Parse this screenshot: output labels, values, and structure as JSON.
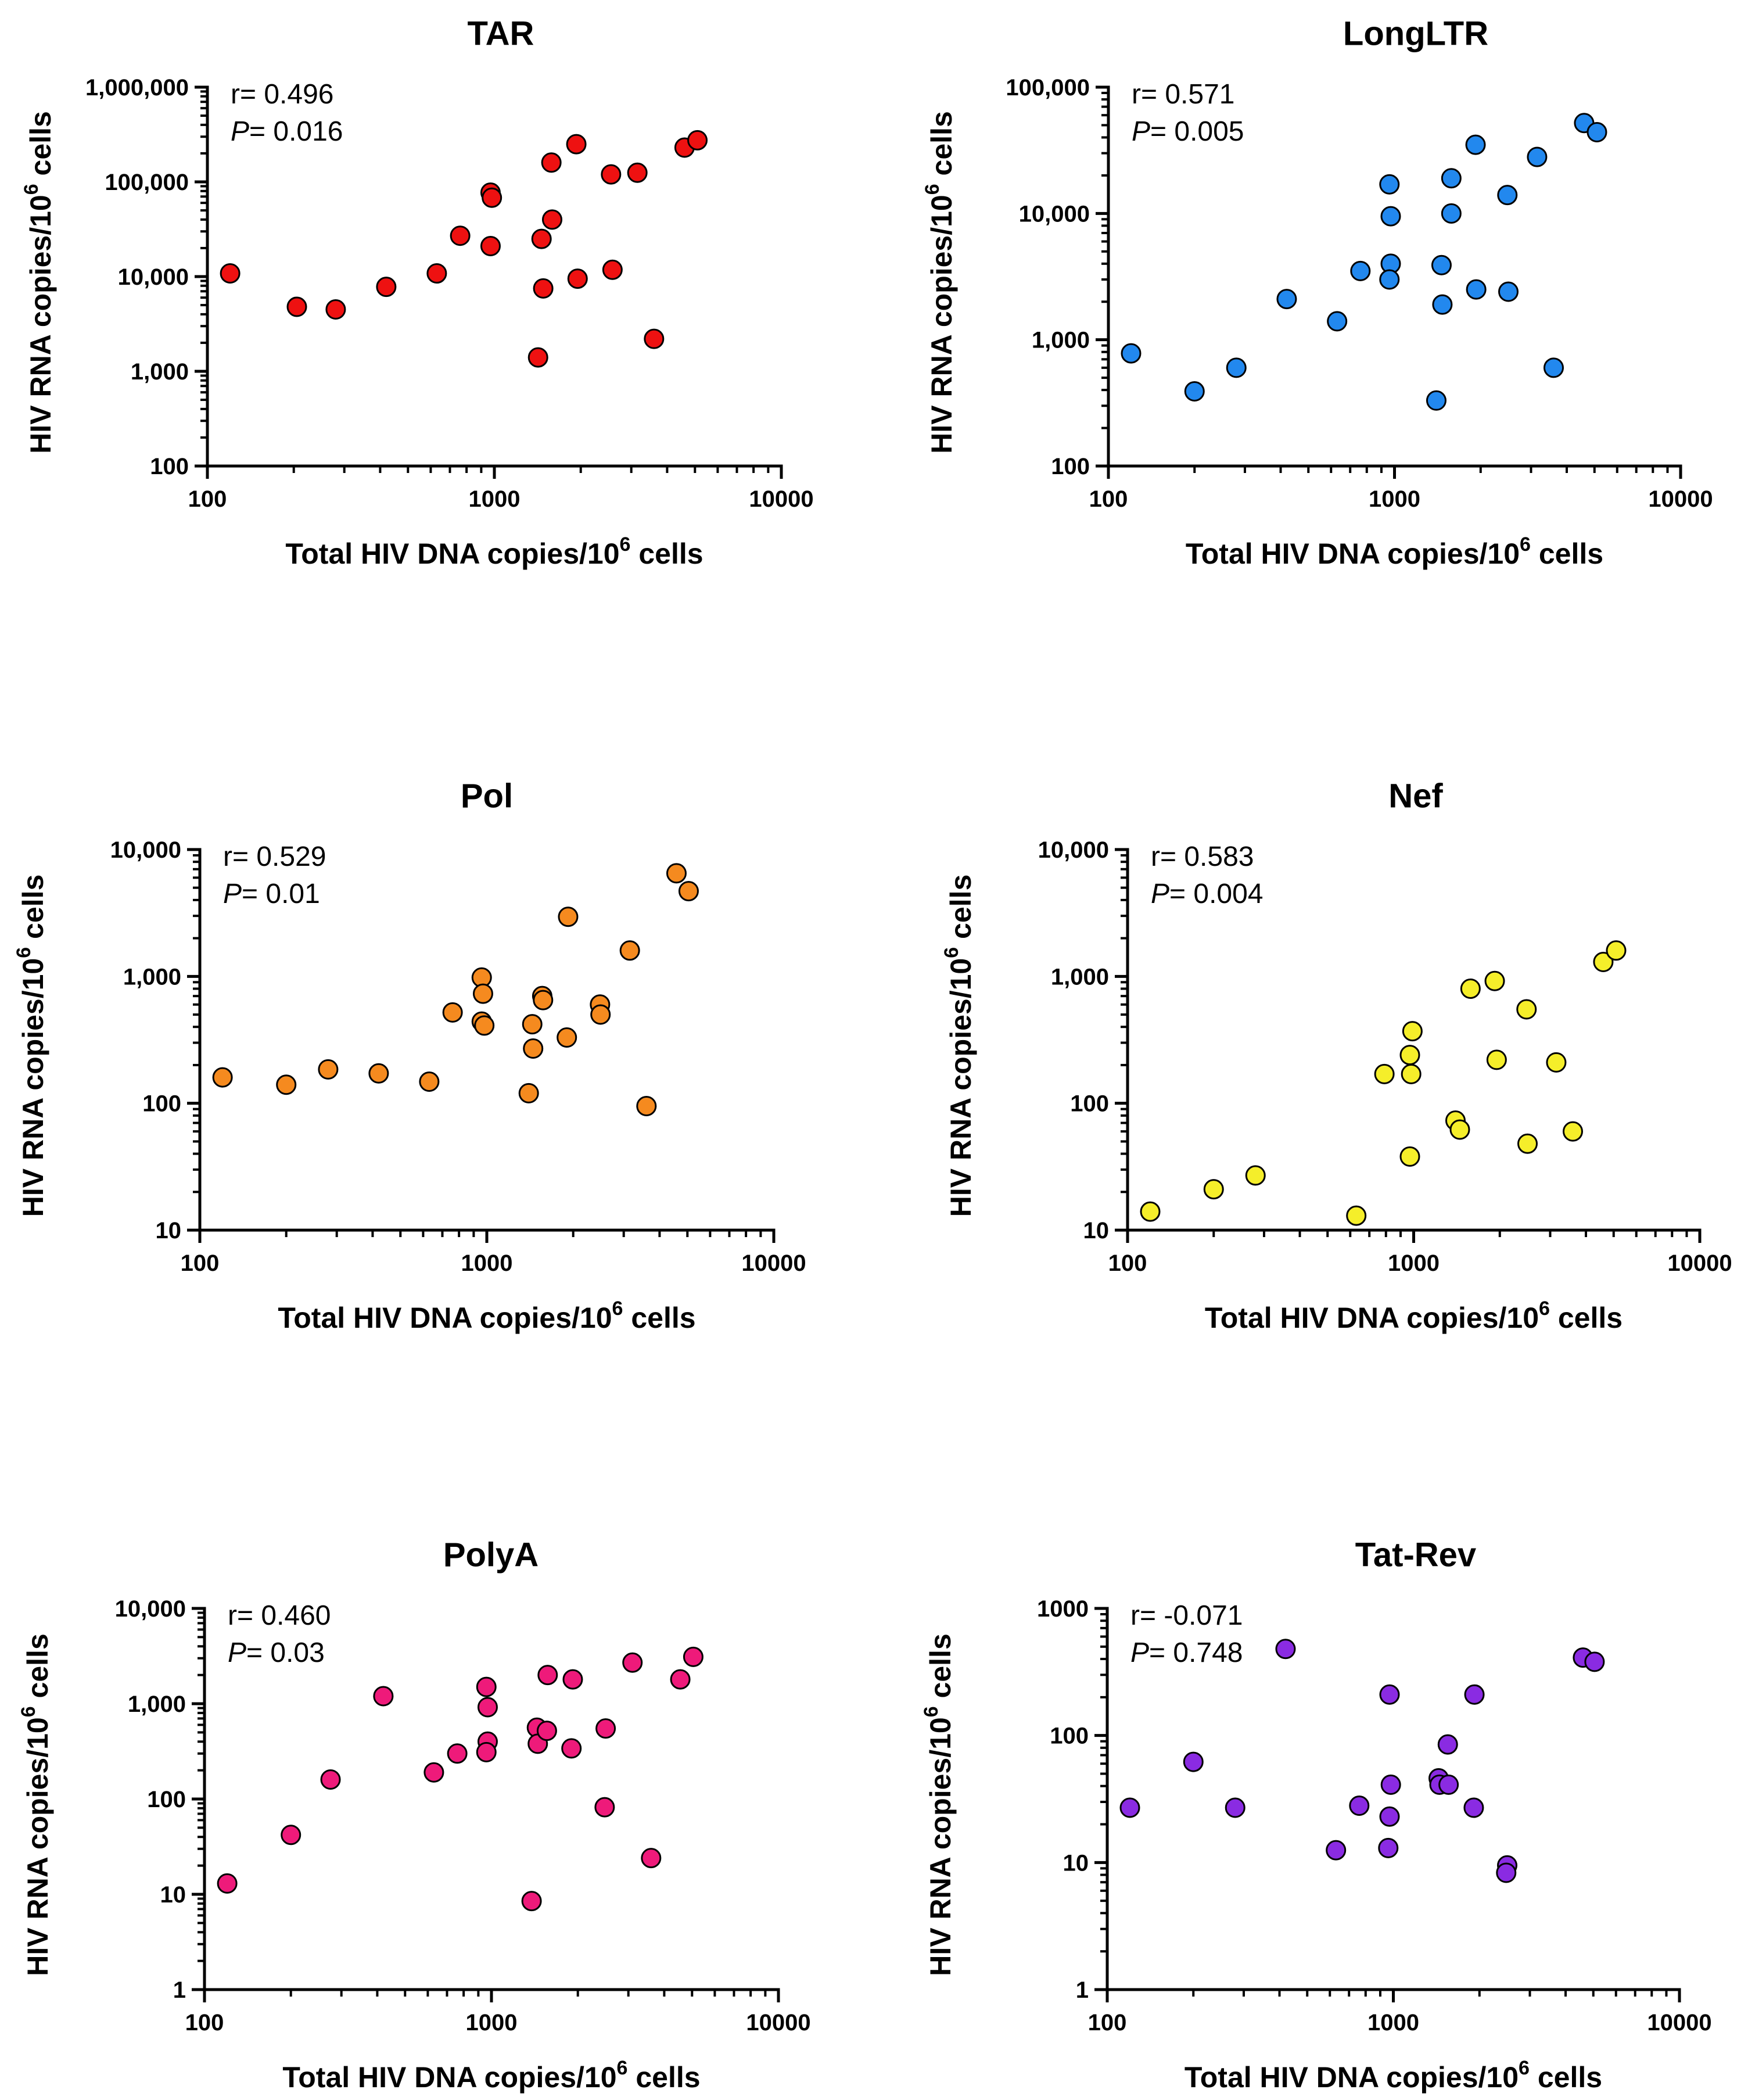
{
  "chart_data": [
    {
      "type": "scatter",
      "title": "TAR",
      "xlabel": "Total HIV DNA copies/10",
      "xlabel_sup": "6",
      "xlabel_end": " cells",
      "ylabel": "HIV RNA copies/10",
      "ylabel_sup": "6",
      "ylabel_end": " cells",
      "xscale": "log",
      "yscale": "log",
      "xlim": [
        100,
        10000
      ],
      "ylim": [
        100,
        1000000
      ],
      "x_ticks": [
        100,
        1000,
        10000
      ],
      "x_tick_labels": [
        "100",
        "1000",
        "10000"
      ],
      "y_ticks": [
        100,
        1000,
        10000,
        100000,
        1000000
      ],
      "y_tick_labels": [
        "100",
        "1,000",
        "10,000",
        "100,000",
        "1,000,000"
      ],
      "r_label": "r= 0.496",
      "p_label": "P",
      "p_value": "= 0.016",
      "color": "#ee1111",
      "points": [
        [
          120,
          10800
        ],
        [
          205,
          4800
        ],
        [
          280,
          4500
        ],
        [
          420,
          7800
        ],
        [
          630,
          10800
        ],
        [
          760,
          27000
        ],
        [
          970,
          77000
        ],
        [
          980,
          68000
        ],
        [
          970,
          21000
        ],
        [
          1420,
          1400
        ],
        [
          1460,
          25000
        ],
        [
          1480,
          7500
        ],
        [
          1580,
          160000
        ],
        [
          1590,
          40000
        ],
        [
          1930,
          250000
        ],
        [
          1950,
          9500
        ],
        [
          2550,
          120000
        ],
        [
          2580,
          11800
        ],
        [
          3150,
          125000
        ],
        [
          3600,
          2200
        ],
        [
          4600,
          230000
        ],
        [
          5100,
          275000
        ]
      ]
    },
    {
      "type": "scatter",
      "title": "LongLTR",
      "xlabel": "Total HIV DNA copies/10",
      "xlabel_sup": "6",
      "xlabel_end": " cells",
      "ylabel": "HIV RNA copies/10",
      "ylabel_sup": "6",
      "ylabel_end": " cells",
      "xscale": "log",
      "yscale": "log",
      "xlim": [
        100,
        10000
      ],
      "ylim": [
        100,
        100000
      ],
      "x_ticks": [
        100,
        1000,
        10000
      ],
      "x_tick_labels": [
        "100",
        "1000",
        "10000"
      ],
      "y_ticks": [
        100,
        1000,
        10000,
        100000
      ],
      "y_tick_labels": [
        "100",
        "1,000",
        "10,000",
        "100,000"
      ],
      "r_label": "r= 0.571",
      "p_label": "P",
      "p_value": "= 0.005",
      "color": "#2288ee",
      "points": [
        [
          120,
          780
        ],
        [
          200,
          390
        ],
        [
          280,
          600
        ],
        [
          420,
          2100
        ],
        [
          630,
          1400
        ],
        [
          760,
          3500
        ],
        [
          960,
          17000
        ],
        [
          970,
          9500
        ],
        [
          970,
          4000
        ],
        [
          960,
          3000
        ],
        [
          1400,
          330
        ],
        [
          1460,
          3900
        ],
        [
          1470,
          1900
        ],
        [
          1580,
          19000
        ],
        [
          1580,
          10000
        ],
        [
          1920,
          35000
        ],
        [
          1930,
          2500
        ],
        [
          2480,
          14000
        ],
        [
          2500,
          2400
        ],
        [
          3150,
          28000
        ],
        [
          3600,
          600
        ],
        [
          4600,
          52000
        ],
        [
          5100,
          44000
        ]
      ]
    },
    {
      "type": "scatter",
      "title": "Pol",
      "xlabel": "Total HIV DNA copies/10",
      "xlabel_sup": "6",
      "xlabel_end": " cells",
      "ylabel": "HIV RNA copies/10",
      "ylabel_sup": "6",
      "ylabel_end": " cells",
      "xscale": "log",
      "yscale": "log",
      "xlim": [
        100,
        10000
      ],
      "ylim": [
        10,
        10000
      ],
      "x_ticks": [
        100,
        1000,
        10000
      ],
      "x_tick_labels": [
        "100",
        "1000",
        "10000"
      ],
      "y_ticks": [
        10,
        100,
        1000,
        10000
      ],
      "y_tick_labels": [
        "10",
        "100",
        "1,000",
        "10,000"
      ],
      "r_label": "r= 0.529",
      "p_label": "P",
      "p_value": "= 0.01",
      "color": "#f58a1f",
      "points": [
        [
          120,
          160
        ],
        [
          200,
          140
        ],
        [
          280,
          185
        ],
        [
          420,
          172
        ],
        [
          630,
          148
        ],
        [
          760,
          520
        ],
        [
          960,
          980
        ],
        [
          970,
          730
        ],
        [
          960,
          440
        ],
        [
          980,
          410
        ],
        [
          1400,
          120
        ],
        [
          1440,
          420
        ],
        [
          1450,
          270
        ],
        [
          1560,
          700
        ],
        [
          1570,
          650
        ],
        [
          1920,
          2950
        ],
        [
          1900,
          330
        ],
        [
          2480,
          600
        ],
        [
          2490,
          500
        ],
        [
          3150,
          1600
        ],
        [
          3600,
          95
        ],
        [
          4580,
          6500
        ],
        [
          5050,
          4700
        ]
      ]
    },
    {
      "type": "scatter",
      "title": "Nef",
      "xlabel": "Total HIV DNA copies/10",
      "xlabel_sup": "6",
      "xlabel_end": " cells",
      "ylabel": "HIV RNA copies/10",
      "ylabel_sup": "6",
      "ylabel_end": " cells",
      "xscale": "log",
      "yscale": "log",
      "xlim": [
        100,
        10000
      ],
      "ylim": [
        10,
        10000
      ],
      "x_ticks": [
        100,
        1000,
        10000
      ],
      "x_tick_labels": [
        "100",
        "1000",
        "10000"
      ],
      "y_ticks": [
        10,
        100,
        1000,
        10000
      ],
      "y_tick_labels": [
        "10",
        "100",
        "1,000",
        "10,000"
      ],
      "r_label": "r= 0.583",
      "p_label": "P",
      "p_value": "= 0.004",
      "color": "#f5ee2a",
      "points": [
        [
          120,
          14
        ],
        [
          200,
          21
        ],
        [
          280,
          27
        ],
        [
          630,
          13
        ],
        [
          790,
          170
        ],
        [
          970,
          38
        ],
        [
          970,
          240
        ],
        [
          980,
          170
        ],
        [
          990,
          370
        ],
        [
          1400,
          73
        ],
        [
          1450,
          62
        ],
        [
          1580,
          800
        ],
        [
          1920,
          920
        ],
        [
          1950,
          220
        ],
        [
          2480,
          550
        ],
        [
          2500,
          48
        ],
        [
          3150,
          210
        ],
        [
          3600,
          60
        ],
        [
          4600,
          1300
        ],
        [
          5100,
          1600
        ]
      ]
    },
    {
      "type": "scatter",
      "title": "PolyA",
      "xlabel": "Total HIV DNA copies/10",
      "xlabel_sup": "6",
      "xlabel_end": " cells",
      "ylabel": "HIV RNA copies/10",
      "ylabel_sup": "6",
      "ylabel_end": " cells",
      "xscale": "log",
      "yscale": "log",
      "xlim": [
        100,
        10000
      ],
      "ylim": [
        1,
        10000
      ],
      "x_ticks": [
        100,
        1000,
        10000
      ],
      "x_tick_labels": [
        "100",
        "1000",
        "10000"
      ],
      "y_ticks": [
        1,
        10,
        100,
        1000,
        10000
      ],
      "y_tick_labels": [
        "1",
        "10",
        "100",
        "1,000",
        "10,000"
      ],
      "r_label": "r= 0.460",
      "p_label": "P",
      "p_value": "= 0.03",
      "color": "#ee1a7a",
      "points": [
        [
          120,
          13
        ],
        [
          200,
          42
        ],
        [
          275,
          160
        ],
        [
          420,
          1200
        ],
        [
          630,
          190
        ],
        [
          760,
          300
        ],
        [
          960,
          1500
        ],
        [
          970,
          920
        ],
        [
          970,
          400
        ],
        [
          960,
          310
        ],
        [
          1380,
          8.5
        ],
        [
          1440,
          560
        ],
        [
          1450,
          380
        ],
        [
          1570,
          2000
        ],
        [
          1560,
          520
        ],
        [
          1920,
          1800
        ],
        [
          1900,
          340
        ],
        [
          2500,
          550
        ],
        [
          2480,
          82
        ],
        [
          3100,
          2700
        ],
        [
          3600,
          24
        ],
        [
          4550,
          1800
        ],
        [
          5050,
          3100
        ]
      ]
    },
    {
      "type": "scatter",
      "title": "Tat-Rev",
      "xlabel": "Total HIV DNA copies/10",
      "xlabel_sup": "6",
      "xlabel_end": " cells",
      "ylabel": "HIV RNA copies/10",
      "ylabel_sup": "6",
      "ylabel_end": " cells",
      "xscale": "log",
      "yscale": "log",
      "xlim": [
        100,
        10000
      ],
      "ylim": [
        1,
        1000
      ],
      "x_ticks": [
        100,
        1000,
        10000
      ],
      "x_tick_labels": [
        "100",
        "1000",
        "10000"
      ],
      "y_ticks": [
        1,
        10,
        100,
        1000
      ],
      "y_tick_labels": [
        "1",
        "10",
        "100",
        "1000"
      ],
      "r_label": "r= -0.071",
      "p_label": "P",
      "p_value": "= 0.748",
      "color": "#8a2be2",
      "points": [
        [
          120,
          27
        ],
        [
          200,
          62
        ],
        [
          280,
          27
        ],
        [
          420,
          480
        ],
        [
          630,
          12.5
        ],
        [
          760,
          28
        ],
        [
          970,
          210
        ],
        [
          980,
          41
        ],
        [
          970,
          23
        ],
        [
          960,
          13
        ],
        [
          1440,
          46
        ],
        [
          1450,
          41
        ],
        [
          1550,
          85
        ],
        [
          1560,
          41
        ],
        [
          1920,
          210
        ],
        [
          1910,
          27
        ],
        [
          2500,
          9.5
        ],
        [
          2480,
          8.3
        ],
        [
          4600,
          410
        ],
        [
          5050,
          380
        ]
      ]
    }
  ]
}
